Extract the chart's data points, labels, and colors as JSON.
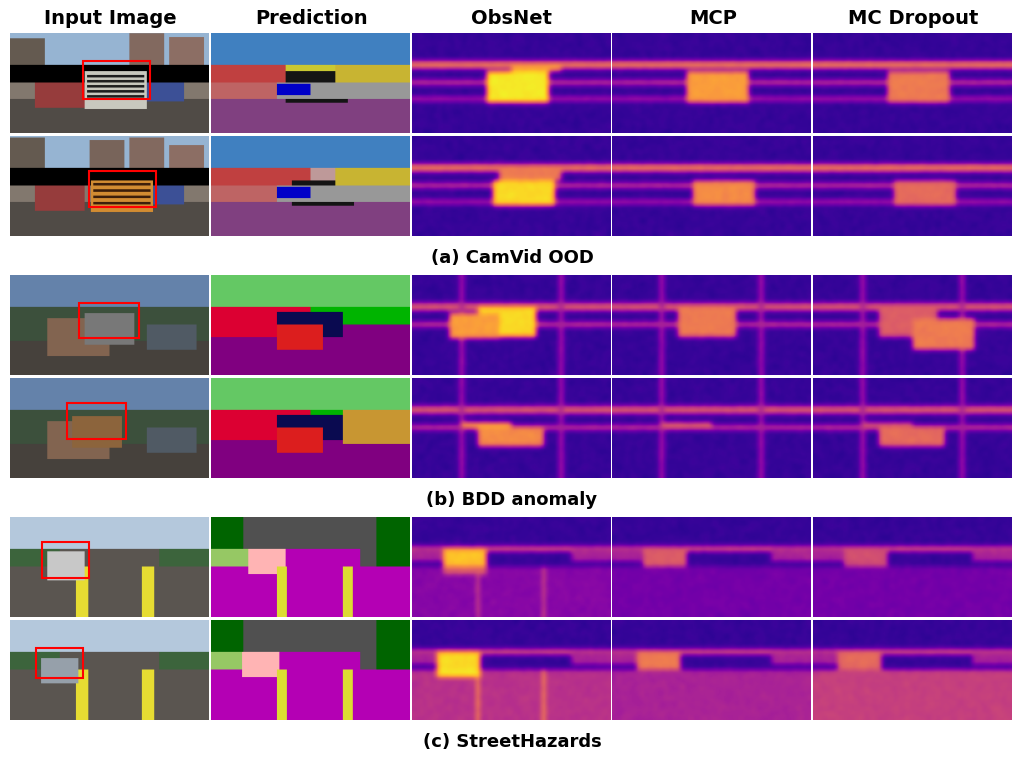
{
  "col_headers": [
    "Input Image",
    "Prediction",
    "ObsNet",
    "MCP",
    "MC Dropout"
  ],
  "section_labels": [
    "(a) CamVid OOD",
    "(b) BDD anomaly",
    "(c) StreetHazards"
  ],
  "header_fontsize": 14,
  "section_fontsize": 13,
  "background_color": "#ffffff",
  "header_fontweight": "bold",
  "section_fontweight": "bold",
  "n_cols": 5,
  "n_sections": 3,
  "rows_per_section": 2,
  "fig_width": 10.24,
  "fig_height": 7.64,
  "dpi": 100,
  "colormap_uncertainty": "plasma",
  "colormap_road": "viridis"
}
